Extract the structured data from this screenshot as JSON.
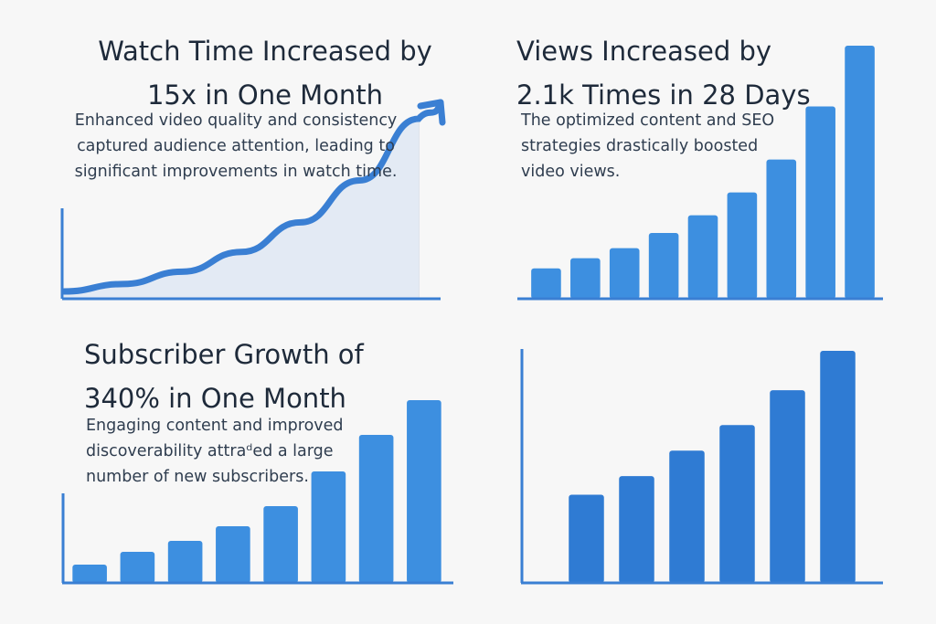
{
  "colors": {
    "accent": "#3a8ade",
    "bar_light": "#3d8fe0",
    "bar_dark": "#2f7bd3",
    "axis": "#3a7fd3",
    "area_fill": "#e3eaf4",
    "text": "#1e2a3a"
  },
  "panels": [
    {
      "title_lines": [
        "Watch Time Increased by",
        "15x in One Month"
      ],
      "desc_lines": [
        "Enhanced video quality and consistency",
        "captured audience attention, leading to",
        "significant improvements in watch time."
      ]
    },
    {
      "title_lines": [
        "Views Increased by",
        "2.1k Times in 28 Days"
      ],
      "desc_lines": [
        "The optimized content and SEO",
        "strategies drastically boosted",
        "video views."
      ]
    },
    {
      "title_lines": [
        "Subscriber Growth of",
        "340% in One Month"
      ],
      "desc_lines": [
        "Engaging content and improved",
        "discoverability attraᵈed a large",
        "number of new subscribers."
      ]
    }
  ],
  "chart_data": [
    {
      "type": "area",
      "title": "Watch Time Increased by 15x in One Month",
      "xlabel": "",
      "ylabel": "",
      "x": [
        0,
        1,
        2,
        3,
        4,
        5,
        6
      ],
      "values": [
        1,
        1.6,
        2.6,
        4.2,
        6.6,
        10,
        15
      ],
      "arrow": true,
      "grid": "vertical lines under area",
      "ylim": [
        0,
        16
      ]
    },
    {
      "type": "bar",
      "title": "Views Increased by 2.1k Times in 28 Days",
      "xlabel": "",
      "ylabel": "",
      "values": [
        12,
        16,
        20,
        26,
        33,
        42,
        55,
        76,
        100
      ],
      "ylim": [
        0,
        100
      ]
    },
    {
      "type": "bar",
      "title": "Subscriber Growth of 340% in One Month",
      "xlabel": "",
      "ylabel": "",
      "values": [
        10,
        17,
        23,
        31,
        42,
        61,
        81,
        100
      ],
      "ylim": [
        0,
        100
      ]
    },
    {
      "type": "bar",
      "title": "",
      "xlabel": "",
      "ylabel": "",
      "values": [
        38,
        46,
        57,
        68,
        83,
        100
      ],
      "ylim": [
        0,
        100
      ]
    }
  ]
}
